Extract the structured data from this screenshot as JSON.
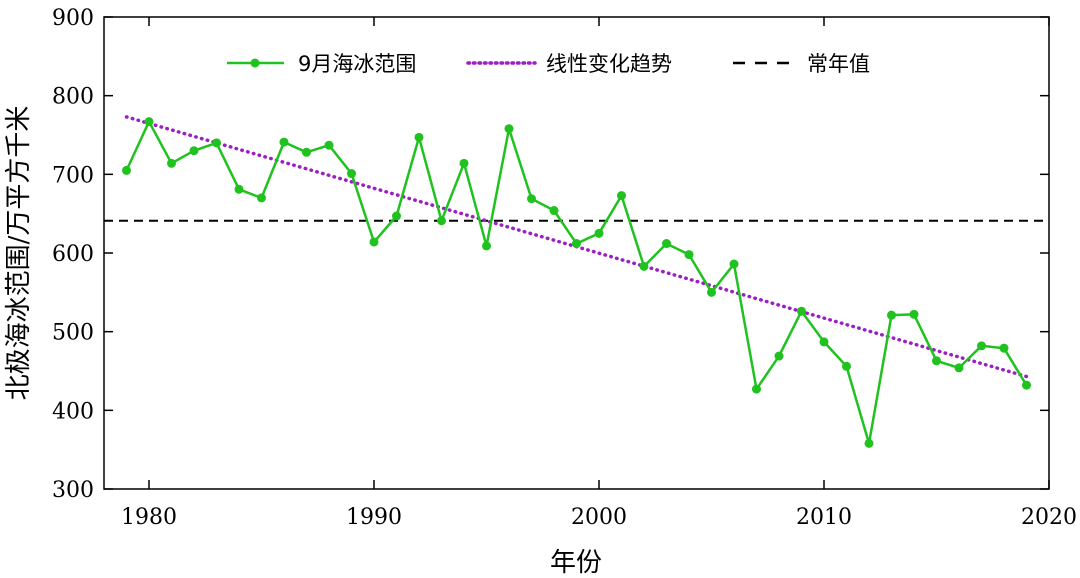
{
  "chart_data": {
    "type": "line",
    "title": "",
    "xlabel": "年份",
    "ylabel": "北极海冰范围/万平方千米",
    "xlim": [
      1978,
      2020
    ],
    "ylim": [
      300,
      900
    ],
    "xticks": [
      1980,
      1990,
      2000,
      2010,
      2020
    ],
    "yticks": [
      300,
      400,
      500,
      600,
      700,
      800,
      900
    ],
    "legend_position": "top",
    "series": [
      {
        "name": "9月海冰范围",
        "style": "solid-with-markers",
        "color": "#1fc21f",
        "x": [
          1979,
          1980,
          1981,
          1982,
          1983,
          1984,
          1985,
          1986,
          1987,
          1988,
          1989,
          1990,
          1991,
          1992,
          1993,
          1994,
          1995,
          1996,
          1997,
          1998,
          1999,
          2000,
          2001,
          2002,
          2003,
          2004,
          2005,
          2006,
          2007,
          2008,
          2009,
          2010,
          2011,
          2012,
          2013,
          2014,
          2015,
          2016,
          2017,
          2018,
          2019
        ],
        "values": [
          705,
          767,
          714,
          730,
          740,
          681,
          670,
          741,
          728,
          737,
          701,
          614,
          647,
          747,
          641,
          714,
          609,
          758,
          669,
          654,
          612,
          625,
          673,
          583,
          612,
          598,
          550,
          586,
          427,
          469,
          526,
          487,
          456,
          358,
          521,
          522,
          463,
          454,
          482,
          479,
          432
        ]
      },
      {
        "name": "线性变化趋势",
        "style": "dotted",
        "color": "#9b1fc4",
        "x": [
          1979,
          2019
        ],
        "values": [
          773,
          443
        ]
      },
      {
        "name": "常年值",
        "style": "dashed",
        "color": "#000000",
        "x": [
          1978,
          2020
        ],
        "values": [
          641,
          641
        ]
      }
    ]
  }
}
